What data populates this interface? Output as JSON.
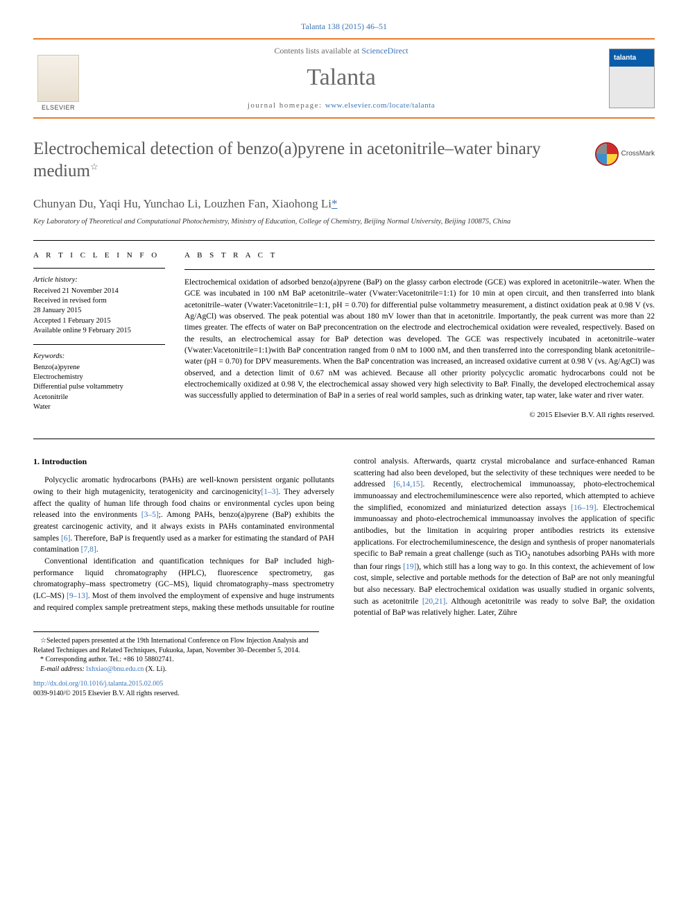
{
  "top_citation": "Talanta 138 (2015) 46–51",
  "banner": {
    "contents_prefix": "Contents lists available at ",
    "contents_link": "ScienceDirect",
    "journal": "Talanta",
    "home_prefix": "journal homepage: ",
    "home_link": "www.elsevier.com/locate/talanta",
    "publisher_alt": "ELSEVIER"
  },
  "title": "Electrochemical detection of benzo(a)pyrene in acetonitrile–water binary medium",
  "title_note_marker": "☆",
  "crossmark_label": "CrossMark",
  "authors_line": "Chunyan Du, Yaqi Hu, Yunchao Li, Louzhen Fan, Xiaohong Li",
  "cor_marker": "*",
  "affiliation": "Key Laboratory of Theoretical and Computational Photochemistry, Ministry of Education, College of Chemistry, Beijing Normal University, Beijing 100875, China",
  "article_info": {
    "head": "A R T I C L E  I N F O",
    "history_label": "Article history:",
    "received": "Received 21 November 2014",
    "revised1": "Received in revised form",
    "revised2": "28 January 2015",
    "accepted": "Accepted 1 February 2015",
    "online": "Available online 9 February 2015",
    "keywords_label": "Keywords:",
    "keywords": [
      "Benzo(a)pyrene",
      "Electrochemistry",
      "Differential pulse voltammetry",
      "Acetonitrile",
      "Water"
    ]
  },
  "abstract": {
    "head": "A B S T R A C T",
    "text": "Electrochemical oxidation of adsorbed benzo(a)pyrene (BaP) on the glassy carbon electrode (GCE) was explored in acetonitrile–water. When the GCE was incubated in 100 nM BaP acetonitrile–water (Vwater:Vacetonitrile=1:1) for 10 min at open circuit, and then transferred into blank acetonitrile–water (Vwater:Vacetonitrile=1:1, pH = 0.70) for differential pulse voltammetry measurement, a distinct oxidation peak at 0.98 V (vs. Ag/AgCl) was observed. The peak potential was about 180 mV lower than that in acetonitrile. Importantly, the peak current was more than 22 times greater. The effects of water on BaP preconcentration on the electrode and electrochemical oxidation were revealed, respectively. Based on the results, an electrochemical assay for BaP detection was developed. The GCE was respectively incubated in acetonitrile–water (Vwater:Vacetonitrile=1:1)with BaP concentration ranged from 0 nM to 1000 nM, and then transferred into the corresponding blank acetonitrile–water (pH = 0.70) for DPV measurements. When the BaP concentration was increased, an increased oxidative current at 0.98 V (vs. Ag/AgCl) was observed, and a detection limit of 0.67 nM was achieved. Because all other priority polycyclic aromatic hydrocarbons could not be electrochemically oxidized at 0.98 V, the electrochemical assay showed very high selectivity to BaP. Finally, the developed electrochemical assay was successfully applied to determination of BaP in a series of real world samples, such as drinking water, tap water, lake water and river water.",
    "copyright": "© 2015 Elsevier B.V. All rights reserved."
  },
  "body": {
    "section_head": "1.  Introduction",
    "p1a": "Polycyclic aromatic hydrocarbons (PAHs) are well-known persistent organic pollutants owing to their high mutagenicity, teratogenicity and carcinogenicity",
    "r1": "[1–3]",
    "p1b": ". They adversely affect the quality of human life through food chains or environmental cycles upon being released into the environments ",
    "r2": "[3–5]",
    "p1c": ";. Among PAHs, benzo(a)pyrene (BaP) exhibits the greatest carcinogenic activity, and it always exists in PAHs contaminated environmental samples ",
    "r3": "[6]",
    "p1d": ". Therefore, BaP is frequently used as a marker for estimating the standard of PAH contamination ",
    "r4": "[7,8]",
    "p1e": ".",
    "p2a": "Conventional identification and quantification techniques for BaP included high-performance liquid chromatography (HPLC), fluorescence spectrometry, gas chromatography–mass spectrometry (GC–MS), liquid chromatography–mass spectrometry (LC–MS) ",
    "r5": "[9–13]",
    "p2b": ". Most of them involved the employment of expensive and huge instruments and required complex sample pretreatment steps, making these methods unsuitable for routine control analysis. Afterwards, quartz crystal microbalance and surface-enhanced Raman scattering had also been developed, but the selectivity of these techniques were needed to be addressed ",
    "r6": "[6,14,15]",
    "p2c": ". Recently, electrochemical immunoassay, photo-electrochemical immunoassay and electrochemiluminescence were also reported, which attempted to achieve the simplified, economized and miniaturized detection assays ",
    "r7": "[16–19]",
    "p2d": ". Electrochemical immunoassay and photo-electrochemical immunoassay involves the application of specific antibodies, but the limitation in acquiring proper antibodies restricts its extensive applications. For electrochemiluminescence, the design and synthesis of proper nanomaterials specific to BaP remain a great challenge (such as TiO",
    "sub2": "2",
    "p2e": " nanotubes adsorbing PAHs with more than four rings ",
    "r8": "[19]",
    "p2f": "), which still has a long way to go. In this context, the achievement of low cost, simple, selective and portable methods for the detection of BaP are not only meaningful but also necessary. BaP electrochemical oxidation was usually studied in organic solvents, such as acetonitrile ",
    "r9": "[20,21]",
    "p2g": ". Although acetonitrile was ready to solve BaP, the oxidation potential of BaP was relatively higher. Later, Zühre"
  },
  "footnotes": {
    "star": "☆Selected papers presented at the 19th International Conference on Flow Injection Analysis and Related Techniques and Related Techniques, Fukuoka, Japan, November 30–December 5, 2014.",
    "cor_label": "* Corresponding author. Tel.: +86 10 58802741.",
    "email_label": "E-mail address: ",
    "email": "lxhxiao@bnu.edu.cn",
    "email_tail": " (X. Li)."
  },
  "doi": {
    "link": "http://dx.doi.org/10.1016/j.talanta.2015.02.005",
    "issn_line": "0039-9140/© 2015 Elsevier B.V. All rights reserved."
  },
  "colors": {
    "link": "#3a74b8",
    "rule_orange": "#e87928",
    "title_gray": "#585858",
    "journal_gray": "#696969"
  }
}
